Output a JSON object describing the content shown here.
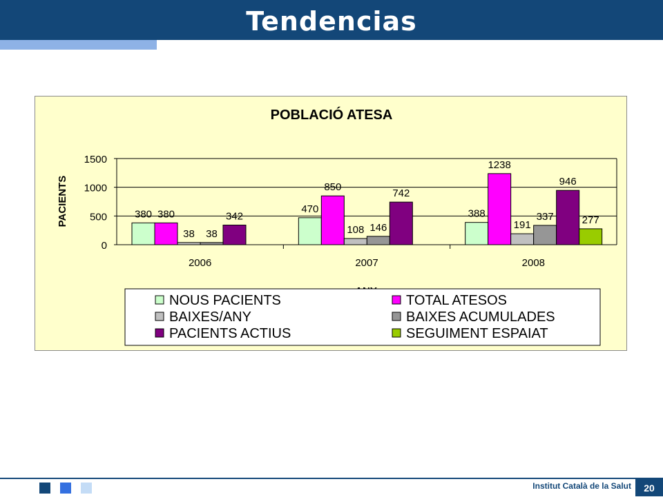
{
  "slide": {
    "title": "Tendencias",
    "footer_org": "Institut Català de la Salut",
    "page_number": "20"
  },
  "colors": {
    "header": "#134778",
    "header_accent": "#8eb2e6",
    "chart_background": "#ffffcc"
  },
  "chart_data": {
    "type": "bar",
    "title": "POBLACIÓ ATESA",
    "xlabel": "ANY",
    "ylabel": "PACIENTS",
    "categories": [
      "2006",
      "2007",
      "2008"
    ],
    "ylim": [
      0,
      1500
    ],
    "yticks": [
      0,
      500,
      1000,
      1500
    ],
    "grid": true,
    "legend_position": "bottom",
    "series": [
      {
        "name": "NOUS PACIENTS",
        "color": "#ccffcc",
        "values": [
          380,
          470,
          388
        ]
      },
      {
        "name": "TOTAL ATESOS",
        "color": "#ff00ff",
        "values": [
          380,
          850,
          1238
        ]
      },
      {
        "name": "BAIXES/ANY",
        "color": "#c0c0c0",
        "values": [
          38,
          108,
          191
        ]
      },
      {
        "name": "BAIXES ACUMULADES",
        "color": "#969696",
        "values": [
          38,
          146,
          337
        ]
      },
      {
        "name": "PACIENTS ACTIUS",
        "color": "#800080",
        "values": [
          342,
          742,
          946
        ]
      },
      {
        "name": "SEGUIMENT ESPAIAT",
        "color": "#99cc00",
        "values": [
          null,
          null,
          277
        ]
      }
    ]
  }
}
